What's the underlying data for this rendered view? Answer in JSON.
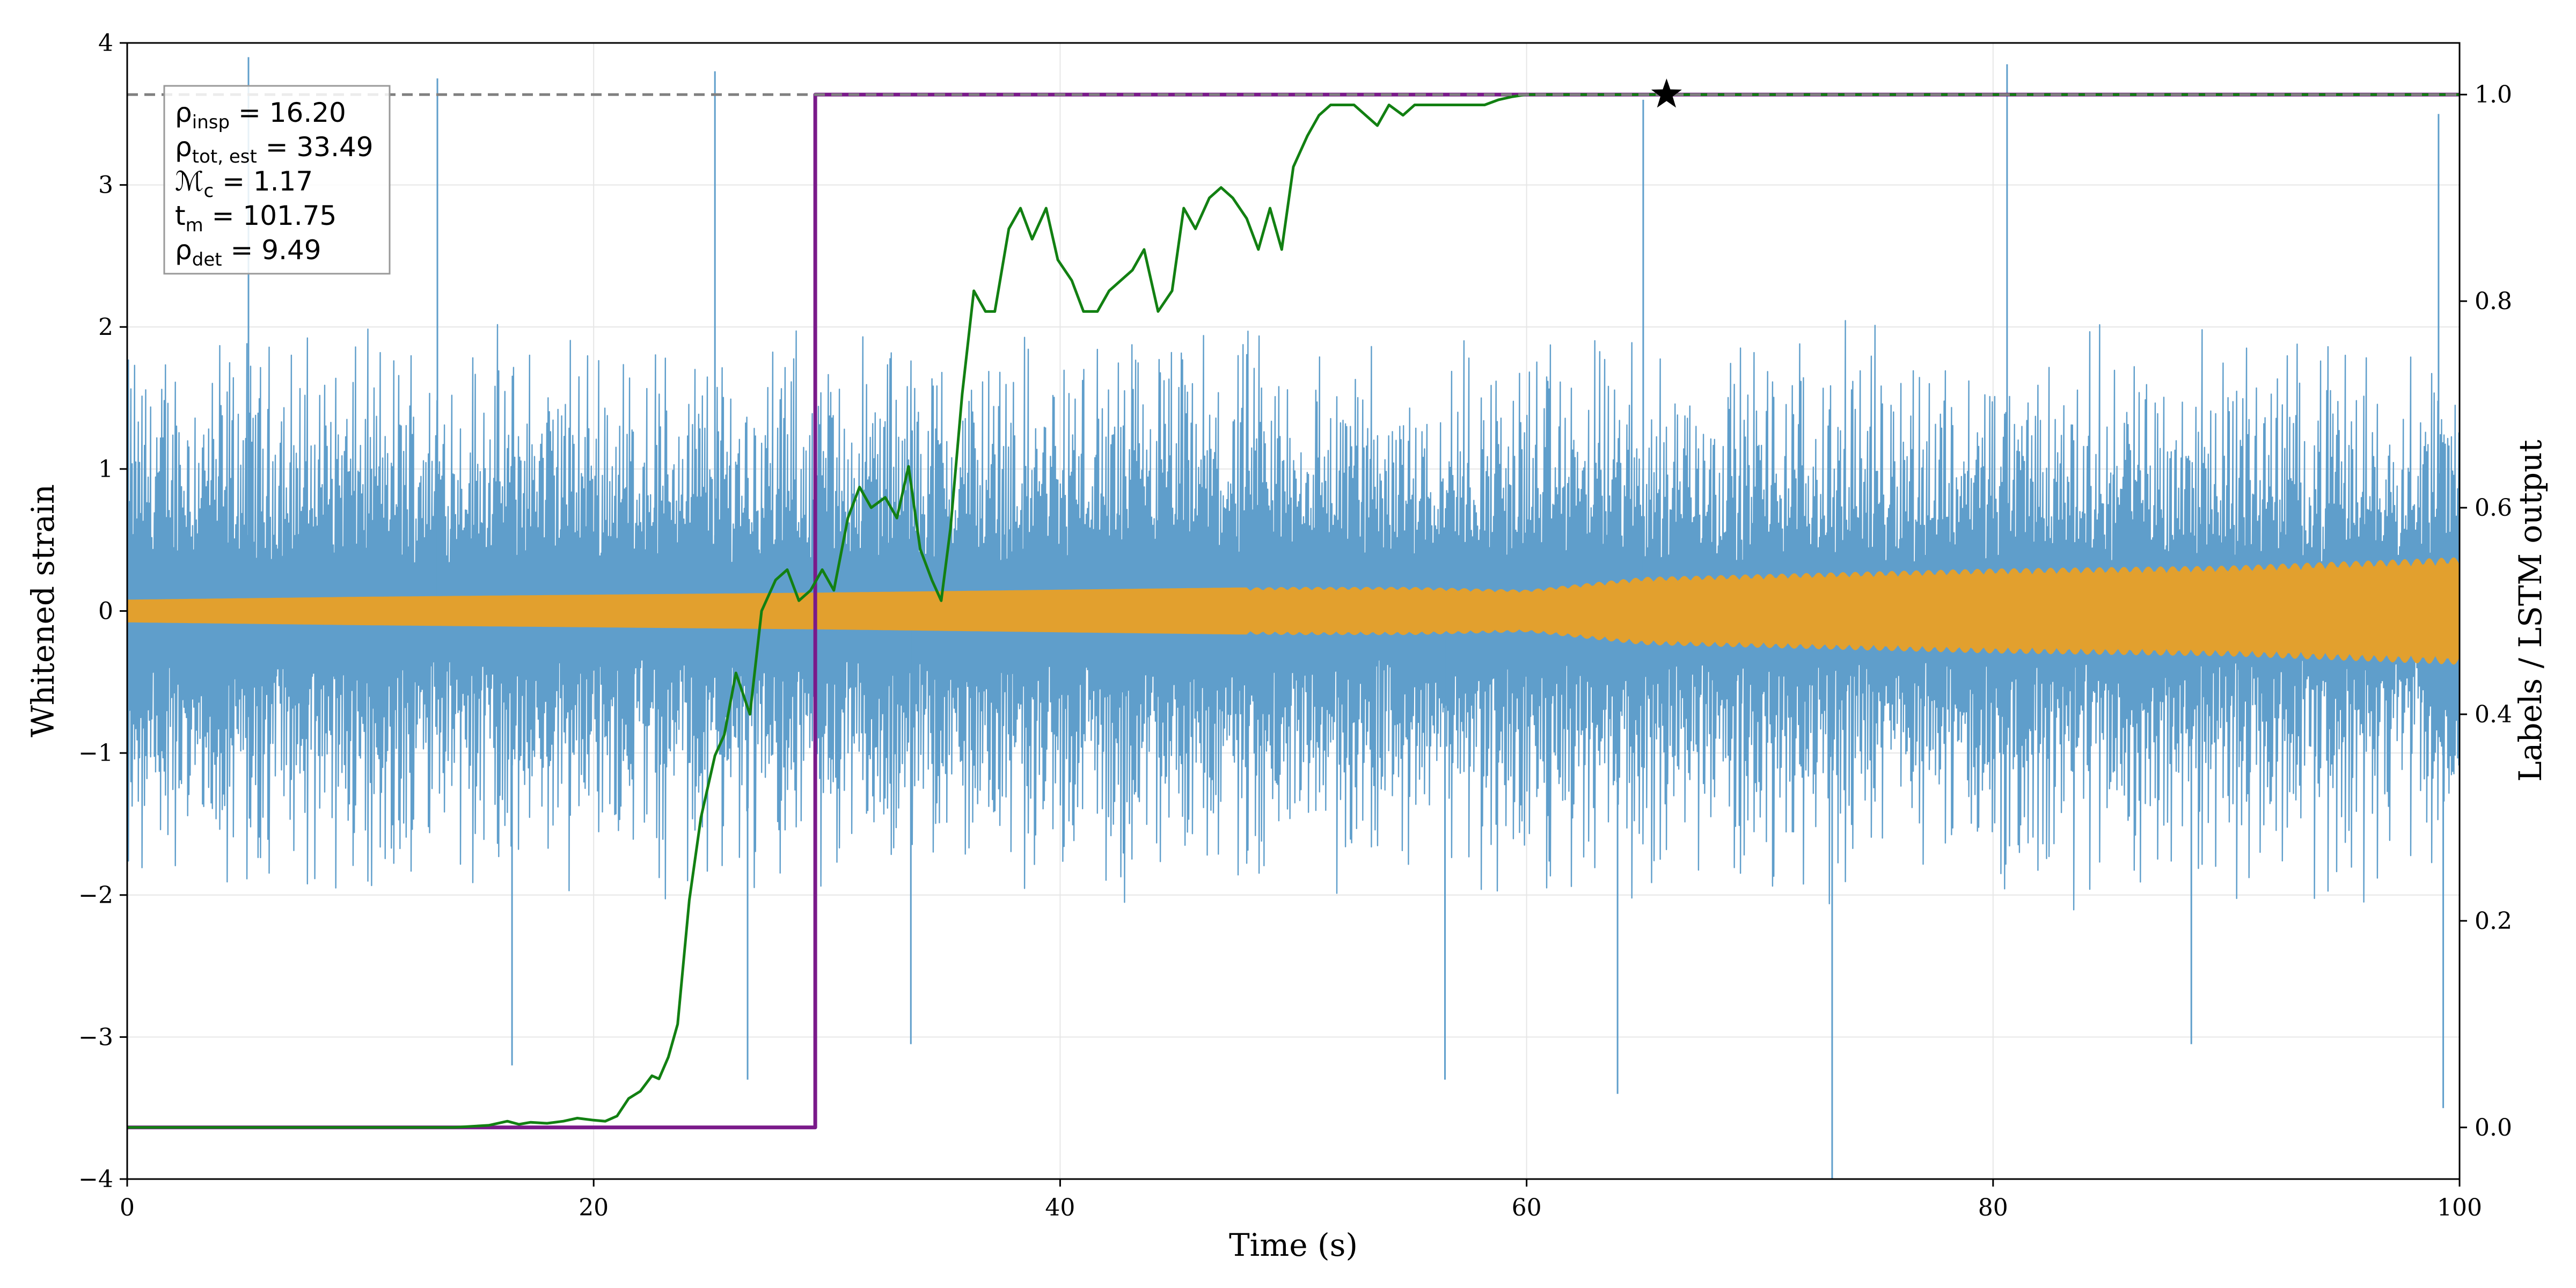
{
  "chart_data": {
    "type": "line",
    "xlabel": "Time (s)",
    "ylabel": "Whitened strain",
    "y2label": "Labels / LSTM output",
    "xlim": [
      0,
      100
    ],
    "ylim": [
      -4,
      4
    ],
    "y2lim": [
      -0.05,
      1.05
    ],
    "xticks": [
      0,
      20,
      40,
      60,
      80,
      100
    ],
    "xtick_labels": [
      "0",
      "20",
      "40",
      "60",
      "80",
      "100"
    ],
    "yticks": [
      -4,
      -3,
      -2,
      -1,
      0,
      1,
      2,
      3,
      4
    ],
    "ytick_labels": [
      "−4",
      "−3",
      "−2",
      "−1",
      "0",
      "1",
      "2",
      "3",
      "4"
    ],
    "y2ticks": [
      0,
      0.2,
      0.4,
      0.6,
      0.8,
      1.0
    ],
    "y2tick_labels": [
      "0.0",
      "0.2",
      "0.4",
      "0.6",
      "0.8",
      "1.0"
    ],
    "grid": true,
    "series": [
      {
        "kind": "noise_band",
        "axis": "left",
        "color": "#5f9ecb",
        "typical_amplitude": 1.6,
        "spikes": [
          {
            "x": 5.2,
            "y": 3.9
          },
          {
            "x": 13.3,
            "y": 3.75
          },
          {
            "x": 25.2,
            "y": 3.8
          },
          {
            "x": 65.0,
            "y": 3.6
          },
          {
            "x": 80.6,
            "y": 3.85
          },
          {
            "x": 99.1,
            "y": 3.5
          },
          {
            "x": 16.5,
            "y": -3.2
          },
          {
            "x": 26.6,
            "y": -3.3
          },
          {
            "x": 33.6,
            "y": -3.05
          },
          {
            "x": 56.5,
            "y": -3.3
          },
          {
            "x": 63.9,
            "y": -3.4
          },
          {
            "x": 73.1,
            "y": -4.0
          },
          {
            "x": 88.5,
            "y": -3.05
          },
          {
            "x": 99.3,
            "y": -3.5
          }
        ]
      },
      {
        "kind": "signal_band",
        "axis": "left",
        "color": "#e2a02e",
        "amplitude": {
          "x": [
            0,
            10,
            30,
            50,
            55,
            60,
            65,
            70,
            80,
            90,
            100
          ],
          "y": [
            0.08,
            0.1,
            0.13,
            0.17,
            0.17,
            0.15,
            0.24,
            0.26,
            0.3,
            0.32,
            0.38
          ]
        }
      },
      {
        "name": "label",
        "axis": "right",
        "color": "#7a1a8a",
        "x": [
          0,
          29.5,
          29.5,
          100
        ],
        "y": [
          0,
          0,
          1,
          1
        ]
      },
      {
        "name": "LSTM output",
        "axis": "right",
        "color": "#128012",
        "x": [
          0,
          14,
          15.5,
          16.3,
          16.8,
          17.3,
          18,
          18.7,
          19.3,
          20,
          20.5,
          21,
          21.5,
          22,
          22.5,
          22.8,
          23.2,
          23.6,
          24.1,
          24.6,
          25.2,
          25.6,
          26.1,
          26.7,
          27.2,
          27.8,
          28.3,
          28.8,
          29.3,
          29.8,
          30.3,
          30.9,
          31.4,
          31.9,
          32.5,
          33.0,
          33.5,
          34.0,
          34.5,
          34.9,
          35.3,
          35.8,
          36.3,
          36.8,
          37.2,
          37.8,
          38.3,
          38.8,
          39.4,
          39.9,
          40.5,
          41.0,
          41.6,
          42.1,
          42.6,
          43.1,
          43.6,
          44.2,
          44.8,
          45.3,
          45.8,
          46.4,
          46.9,
          47.4,
          48.0,
          48.5,
          49.0,
          49.5,
          50.0,
          50.6,
          51.1,
          51.6,
          52.1,
          52.6,
          53.1,
          53.6,
          54.1,
          54.7,
          55.2,
          55.8,
          56.4,
          57.0,
          57.6,
          58.2,
          58.8,
          59.4,
          60.0,
          61,
          62,
          65,
          70,
          80,
          90,
          100
        ],
        "y": [
          0,
          0,
          0.002,
          0.006,
          0.003,
          0.005,
          0.004,
          0.006,
          0.009,
          0.007,
          0.006,
          0.011,
          0.028,
          0.035,
          0.05,
          0.047,
          0.068,
          0.1,
          0.22,
          0.3,
          0.36,
          0.38,
          0.44,
          0.4,
          0.5,
          0.53,
          0.54,
          0.51,
          0.52,
          0.54,
          0.52,
          0.59,
          0.62,
          0.6,
          0.61,
          0.59,
          0.64,
          0.56,
          0.53,
          0.51,
          0.58,
          0.71,
          0.81,
          0.79,
          0.79,
          0.87,
          0.89,
          0.86,
          0.89,
          0.84,
          0.82,
          0.79,
          0.79,
          0.81,
          0.82,
          0.83,
          0.85,
          0.79,
          0.81,
          0.89,
          0.87,
          0.9,
          0.91,
          0.9,
          0.88,
          0.85,
          0.89,
          0.85,
          0.93,
          0.96,
          0.98,
          0.99,
          0.99,
          0.99,
          0.98,
          0.97,
          0.99,
          0.98,
          0.99,
          0.99,
          0.99,
          0.99,
          0.99,
          0.99,
          0.995,
          0.998,
          1.0,
          1.0,
          1.0,
          1.0,
          1.0,
          1.0,
          1.0,
          1.0
        ]
      },
      {
        "kind": "reference_line",
        "axis": "right",
        "style": "dashed",
        "color": "#808080",
        "y": 1.0
      },
      {
        "kind": "marker",
        "axis": "right",
        "symbol": "star",
        "color": "#000000",
        "x": 66,
        "y": 1.0
      }
    ],
    "legend_position": "top-left",
    "legend_entries": [
      {
        "sym": "ρ",
        "sub": "insp",
        "rest": " = 16.20"
      },
      {
        "sym": "ρ",
        "sub": "tot, est",
        "rest": " = 33.49"
      },
      {
        "sym": "ℳ",
        "sub": "c",
        "rest": " = 1.17"
      },
      {
        "sym": "t",
        "sub": "m",
        "rest": " = 101.75"
      },
      {
        "sym": "ρ",
        "sub": "det",
        "rest": " = 9.49"
      }
    ]
  }
}
